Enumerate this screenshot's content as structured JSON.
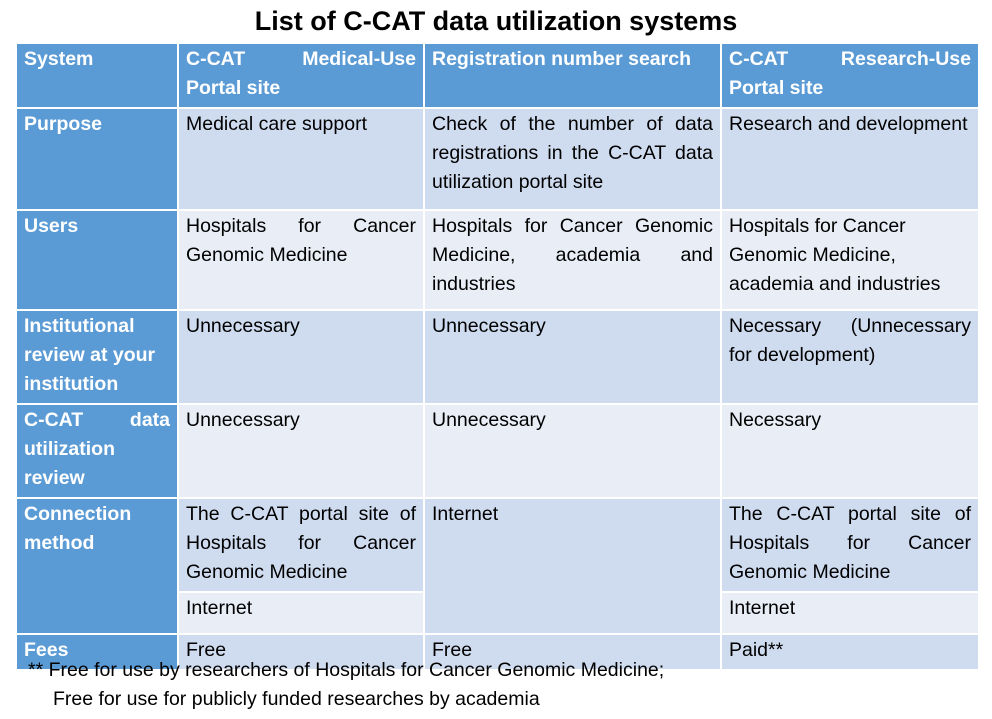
{
  "title": "List of C-CAT data utilization systems",
  "table": {
    "header": [
      "System",
      "C-CAT Medical-Use Portal site",
      "Registration number search",
      "C-CAT Research-Use Portal site"
    ],
    "rows": [
      [
        "Purpose",
        "Medical care support",
        "Check of the number of data registrations in the C-CAT data utilization portal site",
        "Research and development"
      ],
      [
        "Users",
        "Hospitals for Cancer Genomic Medicine",
        "Hospitals for Cancer Genomic Medicine, academia and industries",
        "Hospitals for Cancer Genomic Medicine, academia and industries"
      ],
      [
        "Institutional review at your institution",
        "Unnecessary",
        "Unnecessary",
        "Necessary (Unnecessary for development)"
      ],
      [
        "C-CAT data utilization review",
        "Unnecessary",
        "Unnecessary",
        "Necessary"
      ],
      [
        "Connection method",
        [
          "The C-CAT portal site of Hospitals for Cancer Genomic Medicine",
          "Internet"
        ],
        "Internet",
        [
          "The C-CAT portal site of Hospitals for Cancer Genomic Medicine",
          "Internet"
        ]
      ],
      [
        "Fees",
        "Free",
        "Free",
        "Paid**"
      ]
    ]
  },
  "footnote": [
    "** Free for use by researchers of Hospitals for Cancer Genomic Medicine;",
    "Free for use for publicly funded researches by academia"
  ]
}
